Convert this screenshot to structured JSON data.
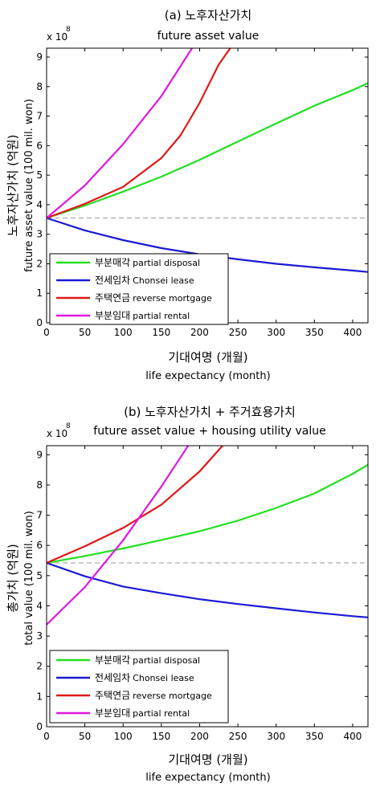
{
  "chart_data": [
    {
      "type": "line",
      "title_ko": "(a) 노후자산가치",
      "title_en": "future asset value",
      "xlabel_ko": "기대여명 (개월)",
      "xlabel_en": "life expectancy (month)",
      "ylabel_ko": "노후자산가치 (억원)",
      "ylabel_en": "future asset value (100 mil. won)",
      "exponent_label": "x 10",
      "exponent": "8",
      "xlim": [
        0,
        420
      ],
      "ylim": [
        0,
        9.3
      ],
      "xticks": [
        "0",
        "50",
        "100",
        "150",
        "200",
        "250",
        "300",
        "350",
        "400"
      ],
      "yticks": [
        "0",
        "1",
        "2",
        "3",
        "4",
        "5",
        "6",
        "7",
        "8",
        "9"
      ],
      "reference_line": 3.55,
      "legend_position": "lower-left",
      "series": [
        {
          "label_ko": "부분매각",
          "label_en": "partial disposal",
          "color": "#22e022",
          "x": [
            0,
            50,
            100,
            150,
            200,
            250,
            300,
            350,
            400,
            420
          ],
          "y": [
            3.55,
            3.97,
            4.44,
            4.95,
            5.52,
            6.14,
            6.75,
            7.35,
            7.88,
            8.12
          ]
        },
        {
          "label_ko": "전세임차",
          "label_en": "Chonsei lease",
          "color": "#1a1ad6",
          "x": [
            0,
            50,
            100,
            150,
            200,
            250,
            300,
            350,
            400,
            420
          ],
          "y": [
            3.55,
            3.13,
            2.8,
            2.53,
            2.32,
            2.15,
            2.0,
            1.88,
            1.77,
            1.72
          ]
        },
        {
          "label_ko": "주택연금",
          "label_en": "reverse mortgage",
          "color": "#e01818",
          "x": [
            0,
            50,
            100,
            150,
            175,
            200,
            225,
            240
          ],
          "y": [
            3.55,
            4.03,
            4.6,
            5.58,
            6.35,
            7.45,
            8.75,
            9.3
          ]
        },
        {
          "label_ko": "부분임대",
          "label_en": "partial rental",
          "color": "#e018e0",
          "x": [
            0,
            50,
            100,
            150,
            190
          ],
          "y": [
            3.55,
            4.65,
            6.05,
            7.68,
            9.3
          ]
        }
      ]
    },
    {
      "type": "line",
      "title_ko": "(b) 노후자산가치 + 주거효용가치",
      "title_en": "future asset value + housing utility value",
      "xlabel_ko": "기대여명 (개월)",
      "xlabel_en": "life expectancy (month)",
      "ylabel_ko": "총가치 (억원)",
      "ylabel_en": "total value (100 mil. won)",
      "exponent_label": "x 10",
      "exponent": "8",
      "xlim": [
        0,
        420
      ],
      "ylim": [
        0,
        9.3
      ],
      "xticks": [
        "0",
        "50",
        "100",
        "150",
        "200",
        "250",
        "300",
        "350",
        "400"
      ],
      "yticks": [
        "0",
        "1",
        "2",
        "3",
        "4",
        "5",
        "6",
        "7",
        "8",
        "9"
      ],
      "reference_line": 5.42,
      "legend_position": "lower-left",
      "series": [
        {
          "label_ko": "부분매각",
          "label_en": "partial disposal",
          "color": "#22e022",
          "x": [
            0,
            50,
            100,
            150,
            200,
            250,
            300,
            350,
            400,
            420
          ],
          "y": [
            5.42,
            5.65,
            5.9,
            6.18,
            6.47,
            6.82,
            7.24,
            7.72,
            8.37,
            8.67
          ]
        },
        {
          "label_ko": "전세임차",
          "label_en": "Chonsei lease",
          "color": "#1a1ad6",
          "x": [
            0,
            50,
            100,
            150,
            200,
            250,
            300,
            350,
            400,
            420
          ],
          "y": [
            5.42,
            4.98,
            4.64,
            4.42,
            4.22,
            4.06,
            3.92,
            3.78,
            3.66,
            3.62
          ]
        },
        {
          "label_ko": "주택연금",
          "label_en": "reverse mortgage",
          "color": "#e01818",
          "x": [
            0,
            50,
            100,
            150,
            200,
            230
          ],
          "y": [
            5.42,
            5.97,
            6.58,
            7.35,
            8.45,
            9.3
          ]
        },
        {
          "label_ko": "부분임대",
          "label_en": "partial rental",
          "color": "#e018e0",
          "x": [
            0,
            50,
            100,
            150,
            185
          ],
          "y": [
            3.38,
            4.62,
            6.17,
            7.95,
            9.3
          ]
        }
      ]
    }
  ]
}
